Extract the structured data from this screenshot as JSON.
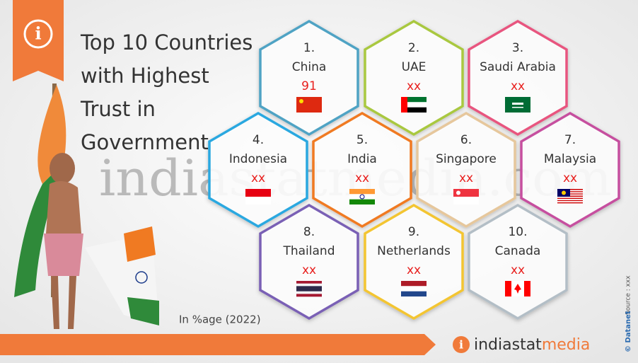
{
  "header": {
    "title_lines": [
      "Top 10 Countries",
      "with Highest",
      "Trust in",
      "Government"
    ]
  },
  "countries": [
    {
      "rank": "1.",
      "name": "China",
      "value": "91",
      "color": "#4fa3c4"
    },
    {
      "rank": "2.",
      "name": "UAE",
      "value": "xx",
      "color": "#a9c840"
    },
    {
      "rank": "3.",
      "name": "Saudi Arabia",
      "value": "xx",
      "color": "#e8557f"
    },
    {
      "rank": "4.",
      "name": "Indonesia",
      "value": "xx",
      "color": "#2ca8e0"
    },
    {
      "rank": "5.",
      "name": "India",
      "value": "xx",
      "color": "#f07a22"
    },
    {
      "rank": "6.",
      "name": "Singapore",
      "value": "xx",
      "color": "#e6c79c"
    },
    {
      "rank": "7.",
      "name": "Malaysia",
      "value": "xx",
      "color": "#c6509f"
    },
    {
      "rank": "8.",
      "name": "Thailand",
      "value": "xx",
      "color": "#7a60b5"
    },
    {
      "rank": "9.",
      "name": "Netherlands",
      "value": "xx",
      "color": "#f3c531"
    },
    {
      "rank": "10.",
      "name": "Canada",
      "value": "xx",
      "color": "#b3bec6"
    }
  ],
  "note": "In %age (2022)",
  "watermark": "indiastatmedia.com",
  "footer": {
    "logo_part1": "indiastat",
    "logo_part2": "media",
    "source": "Source : xxx",
    "copyright": "© Datanet"
  }
}
